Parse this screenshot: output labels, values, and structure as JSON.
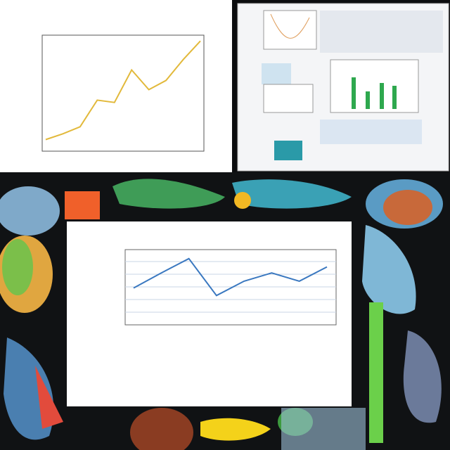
{
  "chart_data": [
    {
      "type": "line",
      "color": "#e2b93b",
      "values": [
        10,
        15,
        21,
        44,
        42,
        70,
        53,
        61,
        79,
        95
      ]
    },
    {
      "type": "line",
      "color": "#3a78c0",
      "values": [
        49,
        69,
        88,
        39,
        58,
        69,
        58,
        77
      ]
    }
  ]
}
